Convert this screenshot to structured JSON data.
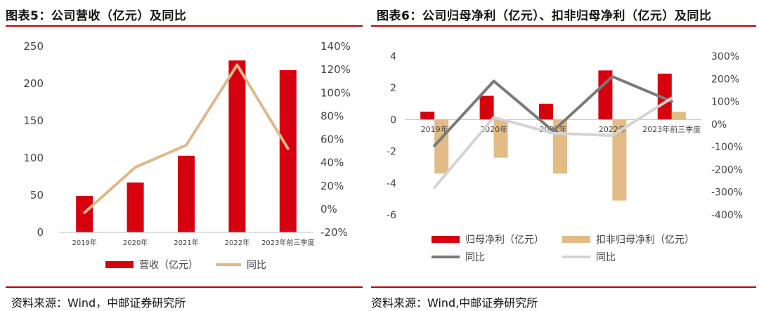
{
  "left": {
    "title": "图表5：公司营收（亿元）及同比",
    "source": "资料来源：Wind，中邮证券研究所",
    "chart_data": {
      "type": "bar",
      "categories": [
        "2019年",
        "2020年",
        "2021年",
        "2022年",
        "2023年前三季度"
      ],
      "series": [
        {
          "name": "营收（亿元）",
          "kind": "bar",
          "axis": "left",
          "color": "#d7000f",
          "values": [
            49,
            67,
            103,
            231,
            218
          ]
        },
        {
          "name": "同比",
          "kind": "line",
          "axis": "right",
          "color": "#dfb98a",
          "values": [
            -3,
            36,
            55,
            124,
            52
          ]
        }
      ],
      "yleft": {
        "ticks": [
          "0",
          "50",
          "100",
          "150",
          "200",
          "250"
        ],
        "range": [
          0,
          250
        ]
      },
      "yright": {
        "ticks": [
          "-20%",
          "0%",
          "20%",
          "40%",
          "60%",
          "80%",
          "100%",
          "120%",
          "140%"
        ],
        "range": [
          -20,
          140
        ]
      },
      "legend_position": "bottom"
    }
  },
  "right": {
    "title": "图表6：公司归母净利（亿元）、扣非归母净利（亿元）及同比",
    "source": "资料来源：Wind,中邮证券研究所",
    "chart_data": {
      "type": "bar",
      "categories": [
        "2019年",
        "2020年",
        "2021年",
        "2022年",
        "2023年前三季度"
      ],
      "series": [
        {
          "name": "归母净利（亿元）",
          "kind": "bar",
          "axis": "left",
          "color": "#d7000f",
          "values": [
            0.5,
            1.5,
            1.0,
            3.1,
            2.9
          ]
        },
        {
          "name": "扣非归母净利（亿元）",
          "kind": "bar",
          "axis": "left",
          "color": "#e3bb86",
          "values": [
            -3.4,
            -2.4,
            -3.4,
            -5.1,
            0.5
          ]
        },
        {
          "name": "同比",
          "kind": "line",
          "axis": "right",
          "color": "#7a7a7a",
          "values": [
            -95,
            190,
            -30,
            210,
            100
          ]
        },
        {
          "name": "同比",
          "kind": "line",
          "axis": "right",
          "color": "#d4d4d4",
          "values": [
            -280,
            30,
            -40,
            -50,
            115
          ]
        }
      ],
      "yleft": {
        "ticks": [
          "-6",
          "-4",
          "-2",
          "0",
          "2",
          "4"
        ],
        "range": [
          -6,
          4
        ]
      },
      "yright": {
        "ticks": [
          "-400%",
          "-300%",
          "-200%",
          "-100%",
          "0%",
          "100%",
          "200%",
          "300%"
        ],
        "range": [
          -400,
          300
        ]
      },
      "legend_position": "bottom"
    }
  }
}
